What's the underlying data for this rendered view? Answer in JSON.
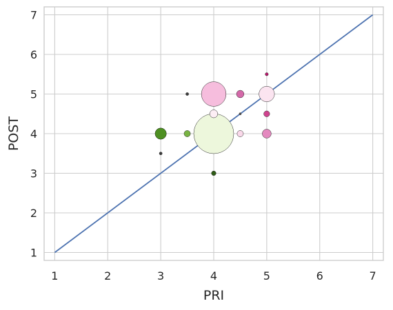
{
  "chart_data": {
    "type": "scatter",
    "title": "",
    "xlabel": "PRI",
    "ylabel": "POST",
    "xlim": [
      0.8,
      7.2
    ],
    "ylim": [
      0.8,
      7.2
    ],
    "xticks": [
      "1",
      "2",
      "3",
      "4",
      "5",
      "6",
      "7"
    ],
    "yticks": [
      "1",
      "2",
      "3",
      "4",
      "5",
      "6",
      "7"
    ],
    "grid": true,
    "reference_line": {
      "x": [
        1,
        7
      ],
      "y": [
        1,
        7
      ],
      "color": "#4c72b0"
    },
    "points": [
      {
        "x": 4.0,
        "y": 4.0,
        "size": 100,
        "color": "#edf7dc"
      },
      {
        "x": 4.0,
        "y": 5.0,
        "size": 38,
        "color": "#f6bddd"
      },
      {
        "x": 5.0,
        "y": 5.0,
        "size": 15,
        "color": "#fbe4f0"
      },
      {
        "x": 3.0,
        "y": 4.0,
        "size": 8,
        "color": "#4d8f21"
      },
      {
        "x": 5.0,
        "y": 4.0,
        "size": 5,
        "color": "#e489bf"
      },
      {
        "x": 4.0,
        "y": 4.5,
        "size": 4,
        "color": "#fdeef5"
      },
      {
        "x": 4.5,
        "y": 5.0,
        "size": 3.5,
        "color": "#d469a9"
      },
      {
        "x": 4.5,
        "y": 4.0,
        "size": 2.5,
        "color": "#fad9ea"
      },
      {
        "x": 3.5,
        "y": 4.0,
        "size": 2.5,
        "color": "#78b342"
      },
      {
        "x": 5.0,
        "y": 4.5,
        "size": 2.2,
        "color": "#d0438f"
      },
      {
        "x": 4.0,
        "y": 3.0,
        "size": 1.3,
        "color": "#2e5c16"
      },
      {
        "x": 5.0,
        "y": 5.5,
        "size": 0.6,
        "color": "#b8176b"
      },
      {
        "x": 3.5,
        "y": 5.0,
        "size": 0.5,
        "color": "#3a3a3a"
      },
      {
        "x": 3.0,
        "y": 3.5,
        "size": 0.5,
        "color": "#3a3a3a"
      },
      {
        "x": 4.5,
        "y": 4.5,
        "size": 0.3,
        "color": "#555555"
      }
    ]
  }
}
